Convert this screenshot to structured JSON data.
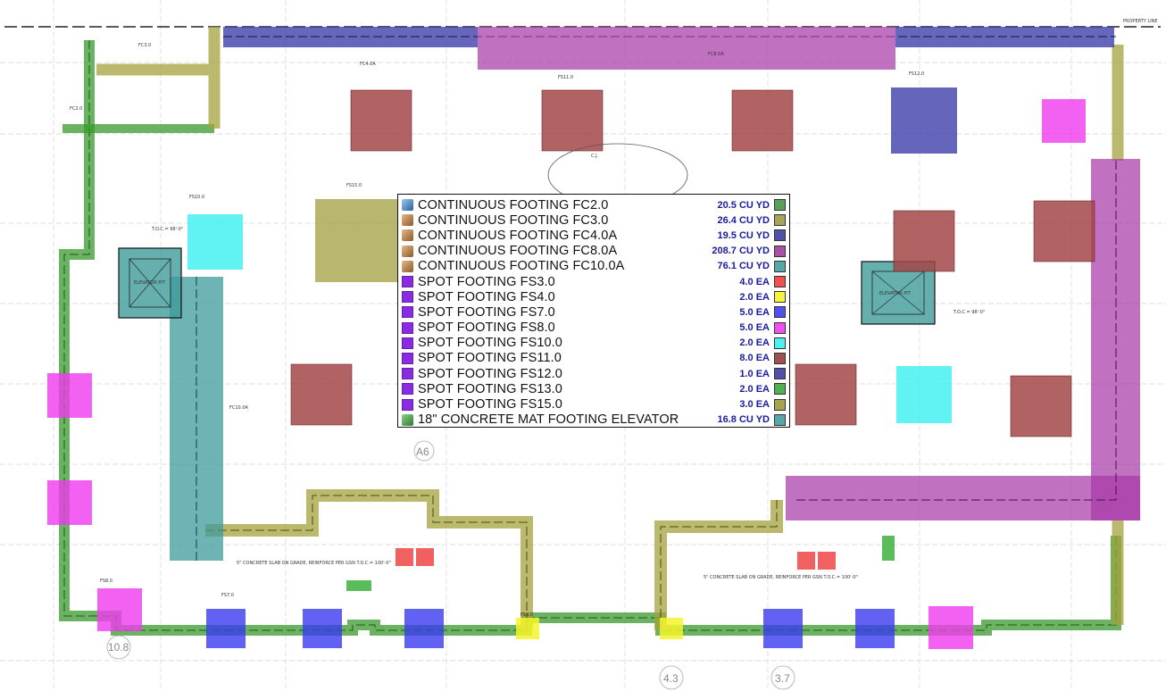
{
  "plan": {
    "property_line_label": "PROPERTY LINE",
    "grid_labels": [
      "A6",
      "10.8",
      "4.3",
      "3.7"
    ],
    "elevator_pit_labels": [
      "ELEVATOR PIT",
      "ELEVATOR PIT"
    ],
    "slab_notes": [
      "5\" CONCRETE SLAB ON GRADE, REINFORCE PER GSN T.O.C.= 100'-0\"",
      "5\" CONCRETE SLAB ON GRADE, REINFORCE PER GSN T.O.C.= 100'-0\""
    ],
    "toc_labels": [
      "T.O.C.= 98'-0\"",
      "T.O.C.= 98'-0\""
    ],
    "cj_label": "C.J.",
    "footing_tags": [
      "FC2.0",
      "FC3.0",
      "FC4.0A",
      "FC8.0A",
      "FC10.0A",
      "FS3.0",
      "FS4.0",
      "FS7.0",
      "FS8.0",
      "FS10.0",
      "FS11.0",
      "FS12.0",
      "FS13.0",
      "FS15.0"
    ],
    "colors": {
      "fc2": "#3a9a2e",
      "fc3": "#a3a13c",
      "fc4": "#3b3ba8",
      "fc8": "#a83aa8",
      "fc10": "#3e9b9b",
      "fs3": "#f04545",
      "fs4": "#f4f42a",
      "fs7": "#3a3af0",
      "fs8": "#f03af0",
      "fs10": "#3af0f0",
      "fs11": "#a34646",
      "fs12": "#4a4ab0",
      "fs13": "#3db03d",
      "fs15": "#a8a44c",
      "mat": "#3e9b9b"
    }
  },
  "legend": {
    "rows": [
      {
        "icon": "footing-cube-icon",
        "label": "CONTINUOUS FOOTING FC2.0",
        "qty": "20.5 CU YD",
        "swatch": "#5aa05a"
      },
      {
        "icon": "footing-cube-icon",
        "label": "CONTINUOUS FOOTING FC3.0",
        "qty": "26.4 CU YD",
        "swatch": "#a8a55a"
      },
      {
        "icon": "footing-cube-icon",
        "label": "CONTINUOUS FOOTING FC4.0A",
        "qty": "19.5 CU YD",
        "swatch": "#5050a8"
      },
      {
        "icon": "footing-cube-icon",
        "label": "CONTINUOUS FOOTING FC8.0A",
        "qty": "208.7 CU YD",
        "swatch": "#a850a8"
      },
      {
        "icon": "footing-cube-icon",
        "label": "CONTINUOUS FOOTING FC10.0A",
        "qty": "76.1 CU YD",
        "swatch": "#58a8a8"
      },
      {
        "icon": "spot-footing-icon",
        "label": "SPOT FOOTING FS3.0",
        "qty": "4.0 EA",
        "swatch": "#f05050"
      },
      {
        "icon": "spot-footing-icon",
        "label": "SPOT FOOTING FS4.0",
        "qty": "2.0 EA",
        "swatch": "#f4f440"
      },
      {
        "icon": "spot-footing-icon",
        "label": "SPOT FOOTING FS7.0",
        "qty": "5.0 EA",
        "swatch": "#5050f0"
      },
      {
        "icon": "spot-footing-icon",
        "label": "SPOT FOOTING FS8.0",
        "qty": "5.0 EA",
        "swatch": "#f050f0"
      },
      {
        "icon": "spot-footing-icon",
        "label": "SPOT FOOTING FS10.0",
        "qty": "2.0 EA",
        "swatch": "#50f0f0"
      },
      {
        "icon": "spot-footing-icon",
        "label": "SPOT FOOTING FS11.0",
        "qty": "8.0 EA",
        "swatch": "#a05050"
      },
      {
        "icon": "spot-footing-icon",
        "label": "SPOT FOOTING FS12.0",
        "qty": "1.0 EA",
        "swatch": "#5050a8"
      },
      {
        "icon": "spot-footing-icon",
        "label": "SPOT FOOTING FS13.0",
        "qty": "2.0 EA",
        "swatch": "#50b050"
      },
      {
        "icon": "spot-footing-icon",
        "label": "SPOT FOOTING FS15.0",
        "qty": "3.0 EA",
        "swatch": "#a8a450"
      },
      {
        "icon": "mat-footing-icon",
        "label": "18\" CONCRETE MAT FOOTING ELEVATOR",
        "qty": "16.8 CU YD",
        "swatch": "#58a8a8"
      }
    ]
  }
}
